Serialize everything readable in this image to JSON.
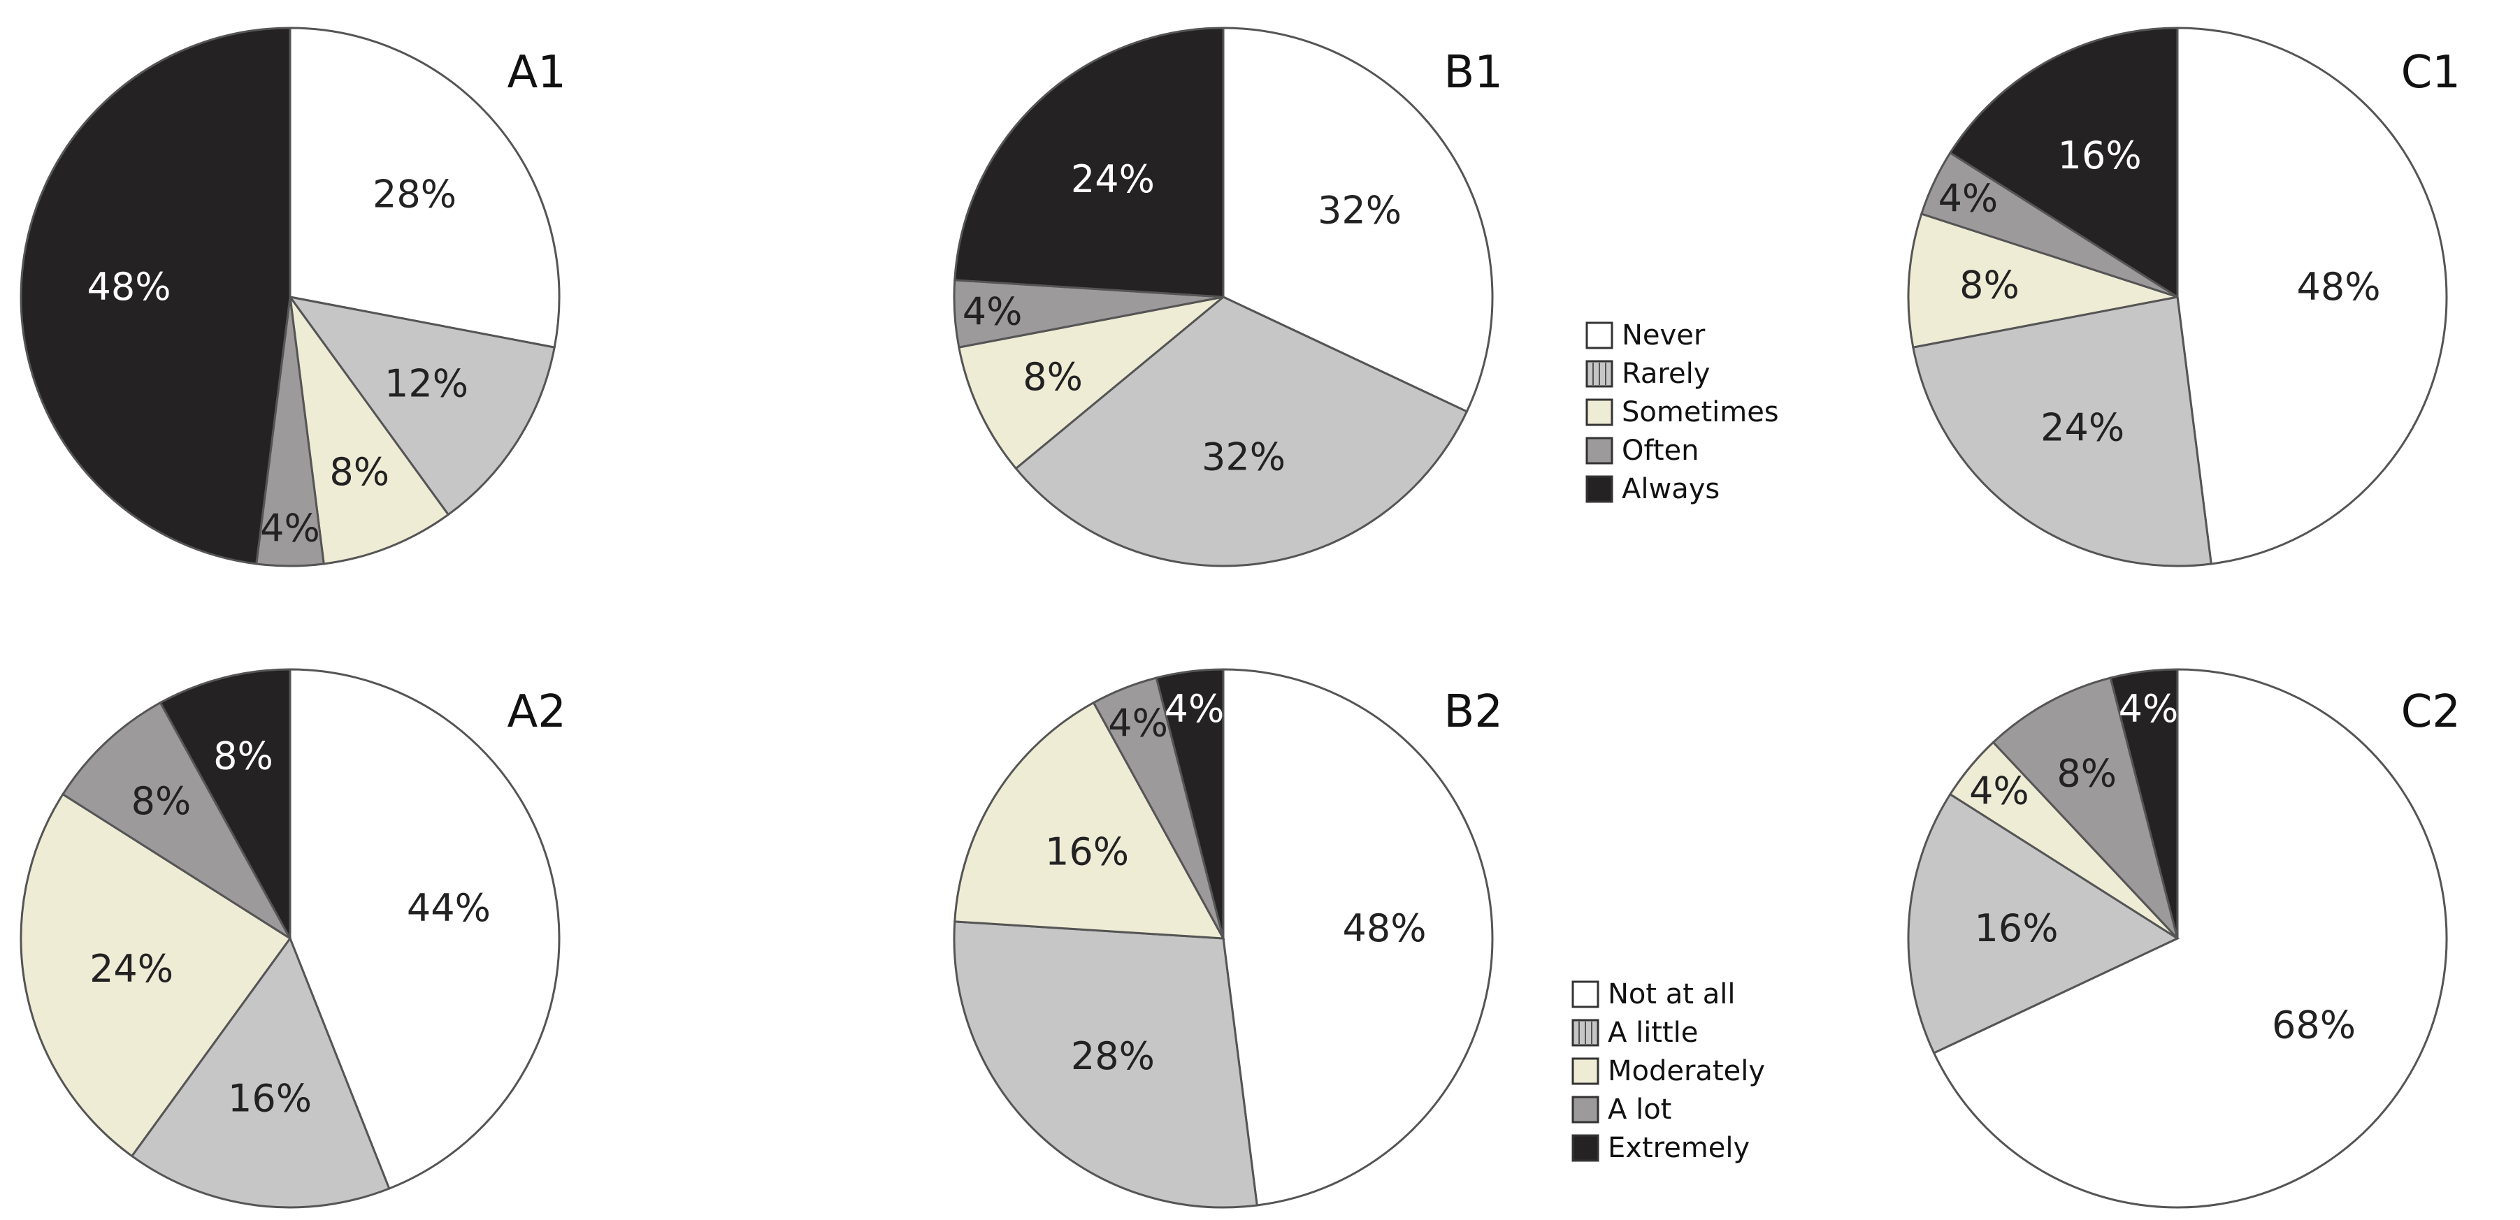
{
  "colors": {
    "Never": "#ffffff",
    "Rarely": "#c6c6c6",
    "Sometimes": "#efecd6",
    "Often": "#9c9a9b",
    "Always": "#242223",
    "Not at all": "#ffffff",
    "A little": "#c6c6c6",
    "Moderately": "#efecd6",
    "A lot": "#9c9a9b",
    "Extremely": "#242223",
    "outline": "#555555"
  },
  "legends": [
    {
      "items": [
        "Never",
        "Rarely",
        "Sometimes",
        "Often",
        "Always"
      ]
    },
    {
      "items": [
        "Not at all",
        "A little",
        "Moderately",
        "A lot",
        "Extremely"
      ]
    }
  ],
  "chart_data": [
    {
      "type": "pie",
      "title": "A1",
      "labels": [
        "Never",
        "Rarely",
        "Sometimes",
        "Often",
        "Always"
      ],
      "values": [
        28,
        12,
        8,
        4,
        48
      ],
      "value_labels": [
        "28%",
        "12%",
        "8%",
        "4%",
        "48%"
      ]
    },
    {
      "type": "pie",
      "title": "B1",
      "labels": [
        "Never",
        "Rarely",
        "Sometimes",
        "Often",
        "Always"
      ],
      "values": [
        32,
        32,
        8,
        4,
        24
      ],
      "value_labels": [
        "32%",
        "32%",
        "8%",
        "4%",
        "24%"
      ]
    },
    {
      "type": "pie",
      "title": "C1",
      "labels": [
        "Never",
        "Rarely",
        "Sometimes",
        "Often",
        "Always"
      ],
      "values": [
        48,
        24,
        8,
        4,
        16
      ],
      "value_labels": [
        "48%",
        "24%",
        "8%",
        "4%",
        "16%"
      ]
    },
    {
      "type": "pie",
      "title": "A2",
      "labels": [
        "Not at all",
        "A little",
        "Moderately",
        "A lot",
        "Extremely"
      ],
      "values": [
        44,
        16,
        24,
        8,
        8
      ],
      "value_labels": [
        "44%",
        "16%",
        "24%",
        "8%",
        "8%"
      ]
    },
    {
      "type": "pie",
      "title": "B2",
      "labels": [
        "Not at all",
        "A little",
        "Moderately",
        "A lot",
        "Extremely"
      ],
      "values": [
        48,
        28,
        16,
        4,
        4
      ],
      "value_labels": [
        "48%",
        "28%",
        "16%",
        "4%",
        "4%"
      ]
    },
    {
      "type": "pie",
      "title": "C2",
      "labels": [
        "Not at all",
        "A little",
        "Moderately",
        "A lot",
        "Extremely"
      ],
      "values": [
        68,
        16,
        4,
        8,
        4
      ],
      "value_labels": [
        "68%",
        "16%",
        "4%",
        "8%",
        "4%"
      ]
    }
  ]
}
